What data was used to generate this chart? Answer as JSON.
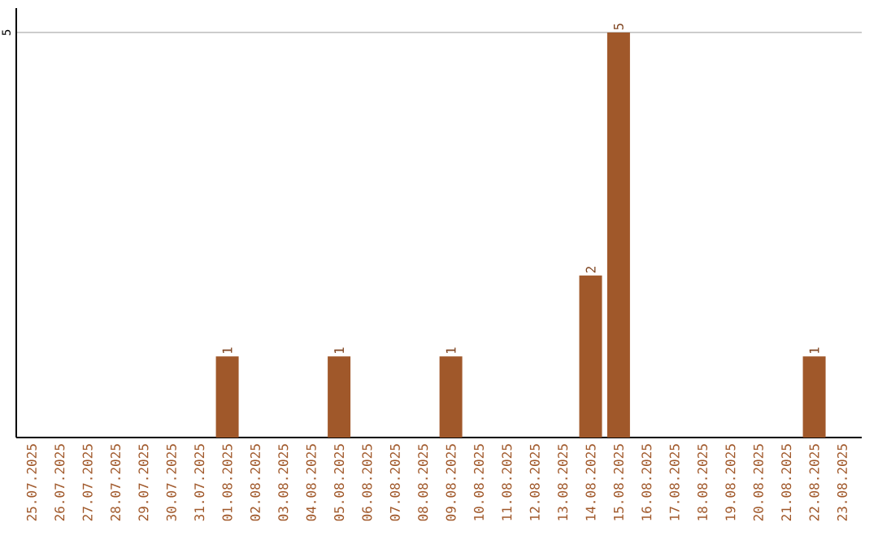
{
  "chart_data": {
    "type": "bar",
    "categories": [
      "25.07.2025",
      "26.07.2025",
      "27.07.2025",
      "28.07.2025",
      "29.07.2025",
      "30.07.2025",
      "31.07.2025",
      "01.08.2025",
      "02.08.2025",
      "03.08.2025",
      "04.08.2025",
      "05.08.2025",
      "06.08.2025",
      "07.08.2025",
      "08.08.2025",
      "09.08.2025",
      "10.08.2025",
      "11.08.2025",
      "12.08.2025",
      "13.08.2025",
      "14.08.2025",
      "15.08.2025",
      "16.08.2025",
      "17.08.2025",
      "18.08.2025",
      "19.08.2025",
      "20.08.2025",
      "21.08.2025",
      "22.08.2025",
      "23.08.2025"
    ],
    "values": [
      0,
      0,
      0,
      0,
      0,
      0,
      0,
      1,
      0,
      0,
      0,
      1,
      0,
      0,
      0,
      1,
      0,
      0,
      0,
      0,
      2,
      5,
      0,
      0,
      0,
      0,
      0,
      0,
      1,
      0
    ],
    "value_labels": [
      null,
      null,
      null,
      null,
      null,
      null,
      null,
      "1",
      null,
      null,
      null,
      "1",
      null,
      null,
      null,
      "1",
      null,
      null,
      null,
      null,
      "2",
      "5",
      null,
      null,
      null,
      null,
      null,
      null,
      "1",
      null
    ],
    "color": "#a0582a",
    "ylim": [
      0,
      5.3
    ],
    "yticks": [
      5
    ],
    "grid": "y"
  }
}
